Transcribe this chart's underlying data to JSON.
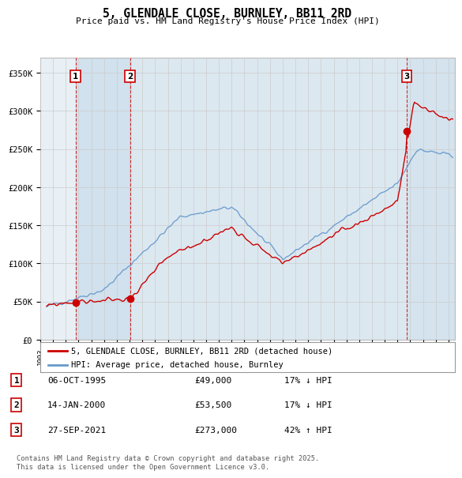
{
  "title": "5, GLENDALE CLOSE, BURNLEY, BB11 2RD",
  "subtitle": "Price paid vs. HM Land Registry's House Price Index (HPI)",
  "sale_dates_num": [
    1995.76,
    2000.04,
    2021.74
  ],
  "sale_prices": [
    49000,
    53500,
    273000
  ],
  "sale_labels": [
    "1",
    "2",
    "3"
  ],
  "hpi_relation": [
    "17% ↓ HPI",
    "17% ↓ HPI",
    "42% ↑ HPI"
  ],
  "sale_display": [
    "06-OCT-1995",
    "14-JAN-2000",
    "27-SEP-2021"
  ],
  "sale_prices_display": [
    "£49,000",
    "£53,500",
    "£273,000"
  ],
  "ylim": [
    0,
    370000
  ],
  "xlim_start": 1993.0,
  "xlim_end": 2025.5,
  "ytick_values": [
    0,
    50000,
    100000,
    150000,
    200000,
    250000,
    300000,
    350000
  ],
  "ytick_labels": [
    "£0",
    "£50K",
    "£100K",
    "£150K",
    "£200K",
    "£250K",
    "£300K",
    "£350K"
  ],
  "red_line_color": "#cc0000",
  "blue_line_color": "#6699cc",
  "grid_color": "#cccccc",
  "bg_color": "#ffffff",
  "plot_bg_color": "#dce8f0",
  "dashed_color": "#cc0000",
  "legend_red_label": "5, GLENDALE CLOSE, BURNLEY, BB11 2RD (detached house)",
  "legend_blue_label": "HPI: Average price, detached house, Burnley",
  "footer_text": "Contains HM Land Registry data © Crown copyright and database right 2025.\nThis data is licensed under the Open Government Licence v3.0."
}
